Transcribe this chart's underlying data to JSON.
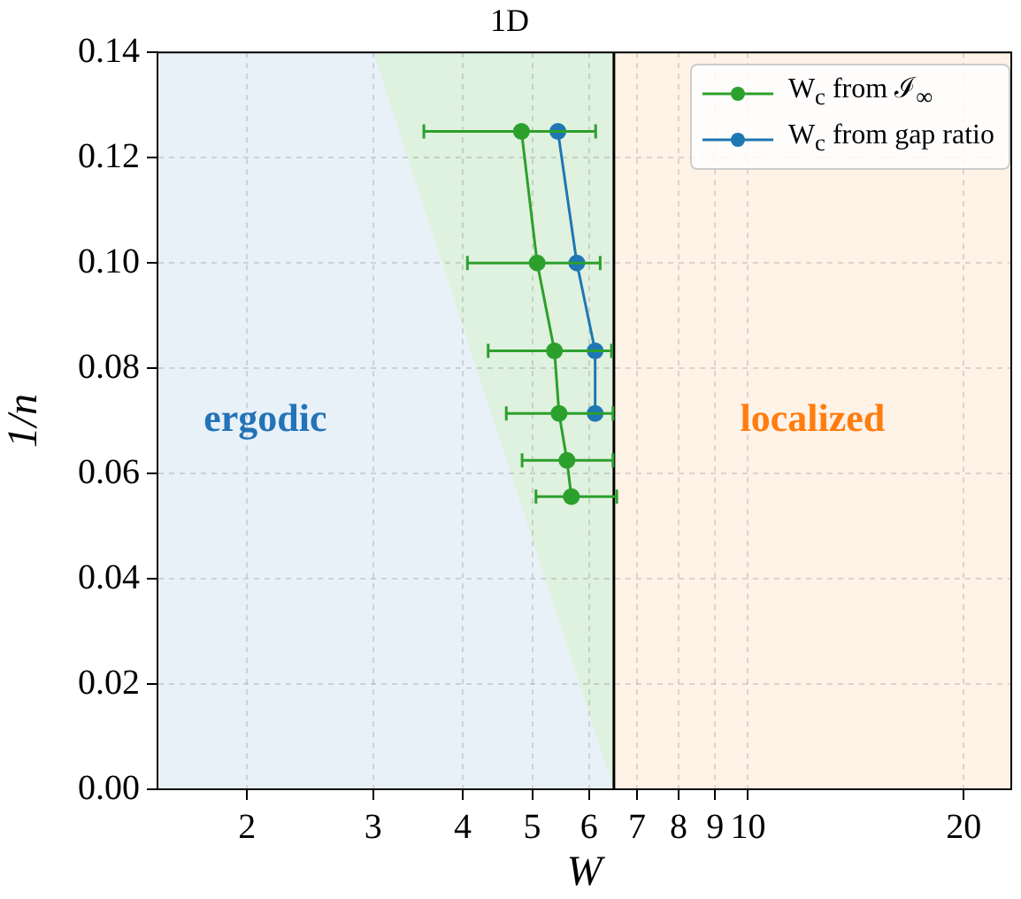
{
  "chart_data": {
    "type": "line",
    "title": "1D",
    "xlabel": "W",
    "ylabel": "1/n",
    "log": "x",
    "xlim": [
      1.5,
      23.3
    ],
    "xticks": [
      2,
      3,
      4,
      5,
      6,
      7,
      8,
      9,
      10,
      20
    ],
    "ylim": [
      0,
      0.14
    ],
    "yticks": [
      {
        "value": 0,
        "label": "0.00"
      },
      {
        "value": 0.02,
        "label": "0.02"
      },
      {
        "value": 0.04,
        "label": "0.04"
      },
      {
        "value": 0.06,
        "label": "0.06"
      },
      {
        "value": 0.08,
        "label": "0.08"
      },
      {
        "value": 0.1,
        "label": "0.10"
      },
      {
        "value": 0.12,
        "label": "0.12"
      },
      {
        "value": 0.14,
        "label": "0.14"
      }
    ],
    "grid": true,
    "legend": "top right",
    "marker": "circle",
    "ref_lines": [
      {
        "axis": "x",
        "value": 6.5,
        "color": "#000000"
      }
    ],
    "bands": [
      {
        "axis": "x",
        "from": 3.0,
        "to": 6.5,
        "color": "#dff1df"
      },
      {
        "axis": "x",
        "from": 6.5,
        "to": 23.3,
        "label": "localized",
        "color": "#fff2e7"
      }
    ],
    "series": [
      {
        "type": "area",
        "name": "ergodic",
        "color": "#e9f1f8",
        "marker": "none",
        "x": [
          1.5,
          3.0,
          6.5
        ],
        "values": [
          0.14,
          0.14,
          0
        ]
      },
      {
        "name": "W$_{c}$ from ℐ$_{∞}$",
        "color": "#2ca02c",
        "x": [
          4.83,
          5.08,
          5.37,
          5.45,
          5.59,
          5.67
        ],
        "values": [
          0.125,
          0.1,
          0.0833,
          0.0714,
          0.0625,
          0.0556
        ],
        "xerrors": [
          [
            3.53,
            6.13
          ],
          [
            4.06,
            6.22
          ],
          [
            4.34,
            6.45
          ],
          [
            4.6,
            6.48
          ],
          [
            4.84,
            6.48
          ],
          [
            5.06,
            6.56
          ]
        ]
      },
      {
        "name": "W$_{c}$ from gap ratio",
        "color": "#1f77b4",
        "x": [
          5.43,
          5.77,
          6.12,
          6.12
        ],
        "values": [
          0.125,
          0.1,
          0.0833,
          0.0714
        ]
      }
    ]
  }
}
